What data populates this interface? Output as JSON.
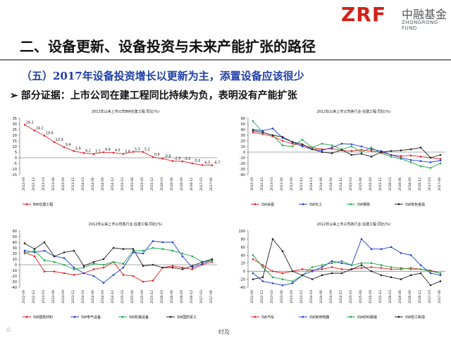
{
  "header": {
    "logo_mark": "ZRF",
    "logo_cn": "中融基金",
    "logo_en": "ZHONGRONG FUND",
    "title": "二、设备更新、设备投资与未来产能扩张的路径"
  },
  "subtitle": "（五）2017年设备投资增长以更新为主，添置设备应该很少",
  "evidence": {
    "bullet": "➢",
    "text": "部分证据：上市公司在建工程同比持续为负，表明没有产能扩张"
  },
  "footer": {
    "page_mark": "纣及",
    "watermark": "©"
  },
  "chart_data": [
    {
      "type": "line",
      "title": "2012年以来上市公司BW在建工程:同比(%)",
      "x": [
        "2012-09",
        "2012-12",
        "2013-03",
        "2013-06",
        "2013-09",
        "2013-12",
        "2014-03",
        "2014-06",
        "2014-09",
        "2014-12",
        "2015-03",
        "2015-06",
        "2015-09",
        "2015-12",
        "2016-03",
        "2016-06",
        "2016-09",
        "2016-12",
        "2017-03",
        "2017-06"
      ],
      "ylim": [
        -15,
        35
      ],
      "yticks": [
        35,
        30,
        25,
        20,
        15,
        10,
        5,
        0,
        -5,
        -10,
        -15
      ],
      "series": [
        {
          "name": "BW在建工程",
          "color": "#e02020",
          "values": [
            29.2,
            24.2,
            19.6,
            13.9,
            9.4,
            5.9,
            4.2,
            3.3,
            4.9,
            4.5,
            3.4,
            5.3,
            5.2,
            0.6,
            -0.8,
            -2.9,
            -3.2,
            -5.0,
            -6.5,
            -6.7
          ],
          "labels": [
            "29.2",
            "24.2",
            "19.6",
            "13.9",
            "9.4",
            "5.9",
            "4.2",
            "3.3",
            "4.9",
            "4.5",
            "3.4",
            "5.3",
            "5.2",
            "0.6",
            "-0.8",
            "-2.9",
            "-3.2",
            "-5.0",
            "-6.5",
            "-6.7"
          ]
        }
      ]
    },
    {
      "type": "line",
      "title": "2012年以来上市公司各行业:在建工程:同比(%)",
      "x": [
        "2012-09",
        "2012-12",
        "2013-03",
        "2013-06",
        "2013-09",
        "2013-12",
        "2014-03",
        "2014-06",
        "2014-09",
        "2014-12",
        "2015-03",
        "2015-06",
        "2015-09",
        "2015-12",
        "2016-03",
        "2016-06",
        "2016-09",
        "2016-12",
        "2017-03",
        "2017-06"
      ],
      "ylim": [
        -40,
        60
      ],
      "yticks": [
        60,
        50,
        40,
        30,
        20,
        10,
        0,
        -10,
        -20,
        -30,
        -40
      ],
      "series": [
        {
          "name": "SW采掘",
          "color": "#e02020",
          "values": [
            35,
            32,
            28,
            20,
            15,
            12,
            8,
            5,
            6,
            3,
            2,
            4,
            2,
            0,
            -5,
            -7,
            -6,
            -8,
            -10,
            -12
          ]
        },
        {
          "name": "SW化工",
          "color": "#1f3fd0",
          "values": [
            40,
            38,
            42,
            25,
            18,
            10,
            5,
            3,
            8,
            15,
            14,
            10,
            5,
            2,
            -5,
            -10,
            -14,
            -16,
            -18,
            -15
          ]
        },
        {
          "name": "SW钢铁",
          "color": "#1aa84a",
          "values": [
            55,
            35,
            30,
            12,
            10,
            22,
            8,
            15,
            12,
            5,
            10,
            0,
            8,
            -2,
            -8,
            -12,
            -18,
            -25,
            -28,
            -20
          ]
        },
        {
          "name": "SW有色金属",
          "color": "#222222",
          "values": [
            38,
            35,
            30,
            27,
            18,
            14,
            5,
            0,
            -2,
            4,
            -5,
            -3,
            -8,
            0,
            2,
            3,
            5,
            8,
            -10,
            -5
          ]
        }
      ]
    },
    {
      "type": "line",
      "title": "2012年以来上市公司各行业:在建工程:同比(%)",
      "x": [
        "2012-09",
        "2012-12",
        "2013-03",
        "2013-06",
        "2013-09",
        "2013-12",
        "2014-03",
        "2014-06",
        "2014-09",
        "2014-12",
        "2015-03",
        "2015-06",
        "2015-09",
        "2015-12",
        "2016-03",
        "2016-06",
        "2016-09",
        "2016-12",
        "2017-03",
        "2017-06"
      ],
      "ylim": [
        -40,
        60
      ],
      "yticks": [
        60,
        50,
        40,
        30,
        20,
        10,
        0,
        -10,
        -20,
        -30,
        -40
      ],
      "series": [
        {
          "name": "SW建筑材料",
          "color": "#e02020",
          "values": [
            22,
            15,
            -12,
            -12,
            -15,
            -18,
            -15,
            -8,
            -5,
            5,
            -18,
            -20,
            -30,
            -28,
            -5,
            -2,
            -5,
            -8,
            0,
            5
          ]
        },
        {
          "name": "SW电气设备",
          "color": "#1f3fd0",
          "values": [
            25,
            22,
            25,
            15,
            12,
            -5,
            -15,
            -20,
            -32,
            -18,
            -5,
            22,
            20,
            42,
            40,
            40,
            15,
            -5,
            2,
            8
          ]
        },
        {
          "name": "SW机械设备",
          "color": "#1aa84a",
          "values": [
            20,
            25,
            8,
            5,
            0,
            -8,
            -5,
            2,
            0,
            5,
            2,
            25,
            25,
            30,
            28,
            25,
            20,
            15,
            5,
            8
          ]
        },
        {
          "name": "SW国防军工",
          "color": "#222222",
          "values": [
            38,
            28,
            40,
            15,
            22,
            25,
            -2,
            5,
            10,
            30,
            28,
            28,
            -2,
            0,
            -5,
            -5,
            -8,
            -2,
            5,
            10
          ]
        }
      ]
    },
    {
      "type": "line",
      "title": "2012年以来上市公司各行业:在建工程:同比(%)",
      "x": [
        "2012-09",
        "2012-12",
        "2013-03",
        "2013-06",
        "2013-09",
        "2013-12",
        "2014-03",
        "2014-06",
        "2014-09",
        "2014-12",
        "2015-03",
        "2015-06",
        "2015-09",
        "2015-12",
        "2016-03",
        "2016-06",
        "2016-09",
        "2016-12",
        "2017-03",
        "2017-06"
      ],
      "ylim": [
        -40,
        100
      ],
      "yticks": [
        100,
        80,
        60,
        40,
        20,
        0,
        -20,
        -40
      ],
      "series": [
        {
          "name": "SW汽车",
          "color": "#e02020",
          "values": [
            30,
            15,
            0,
            -5,
            0,
            5,
            2,
            5,
            10,
            5,
            5,
            8,
            10,
            8,
            5,
            5,
            8,
            5,
            2,
            -5
          ]
        },
        {
          "name": "SW家用电器",
          "color": "#1f3fd0",
          "values": [
            -5,
            -25,
            -30,
            -35,
            -30,
            -10,
            0,
            10,
            25,
            20,
            15,
            80,
            55,
            55,
            60,
            45,
            40,
            15,
            -5,
            -10
          ]
        },
        {
          "name": "SW纺织服装",
          "color": "#1aa84a",
          "values": [
            40,
            10,
            -15,
            -20,
            -25,
            -10,
            10,
            15,
            20,
            25,
            15,
            20,
            20,
            15,
            10,
            8,
            5,
            5,
            0,
            -5
          ]
        },
        {
          "name": "SW轻工制造",
          "color": "#222222",
          "values": [
            -20,
            -15,
            80,
            50,
            0,
            -10,
            -20,
            -10,
            -5,
            -5,
            5,
            15,
            0,
            -10,
            -15,
            -20,
            -10,
            -5,
            -35,
            -25
          ]
        }
      ]
    }
  ]
}
